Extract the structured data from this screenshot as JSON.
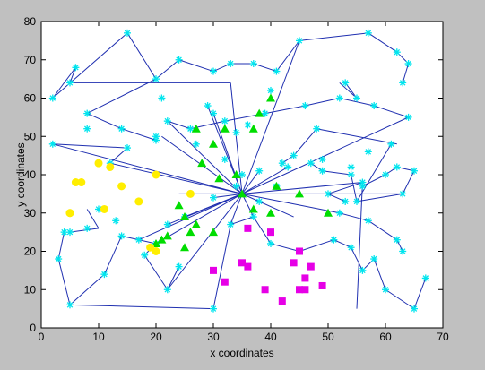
{
  "chart_data": {
    "type": "scatter",
    "xlabel": "x coordinates",
    "ylabel": "y coordinates",
    "xlim": [
      0,
      70
    ],
    "ylim": [
      0,
      80
    ],
    "xticks": [
      0,
      10,
      20,
      30,
      40,
      50,
      60,
      70
    ],
    "yticks": [
      0,
      10,
      20,
      30,
      40,
      50,
      60,
      70,
      80
    ],
    "grid": false,
    "hub": [
      35,
      35
    ],
    "colors": {
      "line": "#1f2fb0",
      "cyan": "#00e5ee",
      "green": "#00dd00",
      "yellow": "#ffee00",
      "magenta": "#e600e6",
      "figure_bg": "#c0c0c0",
      "axes_bg": "#ffffff"
    },
    "series": [
      {
        "marker": "asterisk",
        "color": "cyan",
        "x": [
          2,
          5,
          6,
          15,
          20,
          24,
          30,
          33,
          37,
          41,
          45,
          57,
          62,
          64,
          63,
          55,
          53,
          40,
          30,
          36,
          34,
          29,
          21,
          8,
          14,
          20,
          26,
          32,
          39,
          46,
          52,
          58,
          64,
          61,
          48,
          44,
          42,
          8,
          2,
          15,
          12,
          20,
          22,
          27,
          32,
          35,
          38,
          43,
          49,
          54,
          57,
          56,
          53,
          50,
          56,
          60,
          62,
          65,
          63,
          55,
          54,
          49,
          47,
          41,
          38,
          34,
          30,
          25,
          22,
          17,
          13,
          10,
          8,
          5,
          4,
          3,
          5,
          11,
          14,
          20,
          18,
          22,
          24,
          30,
          33,
          37,
          40,
          45,
          51,
          54,
          56,
          58,
          60,
          65,
          67,
          52,
          57,
          62,
          63
        ],
        "y": [
          60,
          64,
          68,
          77,
          65,
          70,
          67,
          69,
          69,
          67,
          75,
          77,
          72,
          69,
          64,
          60,
          64,
          62,
          56,
          53,
          51,
          58,
          60,
          56,
          52,
          49,
          52,
          54,
          56,
          58,
          60,
          58,
          55,
          48,
          52,
          45,
          43,
          52,
          48,
          47,
          43,
          50,
          54,
          48,
          44,
          40,
          41,
          42,
          44,
          42,
          46,
          38,
          33,
          35,
          37,
          40,
          42,
          41,
          35,
          33,
          40,
          41,
          43,
          37,
          33,
          37,
          34,
          29,
          27,
          23,
          28,
          31,
          26,
          25,
          25,
          18,
          6,
          14,
          24,
          22,
          19,
          10,
          16,
          5,
          27,
          29,
          22,
          20,
          23,
          21,
          15,
          18,
          10,
          5,
          13,
          30,
          28,
          23,
          20
        ]
      },
      {
        "marker": "triangle",
        "color": "green",
        "x": [
          27,
          30,
          32,
          37,
          38,
          40,
          34,
          31,
          28,
          35,
          41,
          45,
          50,
          40,
          37,
          30,
          25,
          20,
          21,
          22,
          25,
          24,
          26,
          27
        ],
        "y": [
          52,
          48,
          52,
          52,
          56,
          60,
          40,
          39,
          43,
          35,
          37,
          35,
          30,
          30,
          31,
          25,
          21,
          22,
          23,
          24,
          29,
          32,
          25,
          27
        ]
      },
      {
        "marker": "circle",
        "color": "yellow",
        "x": [
          5,
          6,
          7,
          10,
          12,
          14,
          17,
          20,
          26,
          11,
          5,
          19,
          20
        ],
        "y": [
          30,
          38,
          38,
          43,
          42,
          37,
          33,
          40,
          35,
          31,
          30,
          21,
          20
        ]
      },
      {
        "marker": "square",
        "color": "magenta",
        "x": [
          36,
          40,
          45,
          47,
          44,
          46,
          45,
          46,
          49,
          42,
          39,
          35,
          36,
          30,
          32
        ],
        "y": [
          26,
          25,
          20,
          16,
          17,
          13,
          10,
          10,
          11,
          7,
          10,
          17,
          16,
          15,
          12
        ]
      }
    ],
    "segments": [
      [
        2,
        60,
        15,
        77
      ],
      [
        15,
        77,
        20,
        65
      ],
      [
        20,
        65,
        24,
        70
      ],
      [
        24,
        70,
        30,
        67
      ],
      [
        30,
        67,
        33,
        69
      ],
      [
        33,
        69,
        37,
        69
      ],
      [
        37,
        69,
        41,
        67
      ],
      [
        41,
        67,
        45,
        75
      ],
      [
        45,
        75,
        57,
        77
      ],
      [
        57,
        77,
        62,
        72
      ],
      [
        62,
        72,
        64,
        69
      ],
      [
        64,
        69,
        63,
        64
      ],
      [
        5,
        64,
        33,
        64
      ],
      [
        33,
        64,
        35,
        35
      ],
      [
        6,
        68,
        5,
        64
      ],
      [
        2,
        60,
        6,
        68
      ],
      [
        8,
        56,
        14,
        52
      ],
      [
        14,
        52,
        20,
        49
      ],
      [
        8,
        56,
        20,
        65
      ],
      [
        2,
        48,
        15,
        47
      ],
      [
        15,
        47,
        12,
        43
      ],
      [
        22,
        54,
        26,
        52
      ],
      [
        26,
        52,
        32,
        54
      ],
      [
        32,
        54,
        39,
        56
      ],
      [
        39,
        56,
        46,
        58
      ],
      [
        46,
        58,
        52,
        60
      ],
      [
        52,
        60,
        58,
        58
      ],
      [
        58,
        58,
        64,
        55
      ],
      [
        52,
        64,
        55,
        60
      ],
      [
        55,
        60,
        53,
        64
      ],
      [
        62,
        48,
        48,
        52
      ],
      [
        48,
        52,
        44,
        45
      ],
      [
        44,
        45,
        42,
        43
      ],
      [
        61,
        48,
        55,
        33
      ],
      [
        55,
        33,
        54,
        40
      ],
      [
        54,
        40,
        49,
        41
      ],
      [
        49,
        41,
        47,
        43
      ],
      [
        56,
        38,
        50,
        35
      ],
      [
        50,
        35,
        53,
        33
      ],
      [
        56,
        37,
        60,
        40
      ],
      [
        60,
        40,
        62,
        42
      ],
      [
        62,
        42,
        65,
        41
      ],
      [
        65,
        41,
        63,
        35
      ],
      [
        63,
        35,
        55,
        33
      ],
      [
        4,
        25,
        3,
        18
      ],
      [
        3,
        18,
        5,
        6
      ],
      [
        5,
        6,
        11,
        14
      ],
      [
        11,
        14,
        14,
        24
      ],
      [
        14,
        24,
        20,
        22
      ],
      [
        20,
        22,
        18,
        19
      ],
      [
        18,
        19,
        22,
        10
      ],
      [
        22,
        10,
        24,
        16
      ],
      [
        5,
        6,
        30,
        5
      ],
      [
        30,
        5,
        33,
        27
      ],
      [
        33,
        27,
        37,
        29
      ],
      [
        37,
        29,
        40,
        22
      ],
      [
        40,
        22,
        45,
        20
      ],
      [
        45,
        20,
        51,
        23
      ],
      [
        51,
        23,
        54,
        21
      ],
      [
        54,
        21,
        56,
        15
      ],
      [
        56,
        15,
        58,
        18
      ],
      [
        58,
        18,
        60,
        10
      ],
      [
        60,
        10,
        65,
        5
      ],
      [
        65,
        5,
        67,
        13
      ],
      [
        52,
        30,
        57,
        28
      ],
      [
        57,
        28,
        62,
        23
      ],
      [
        62,
        23,
        63,
        20
      ],
      [
        55,
        5,
        56,
        38
      ],
      [
        8,
        31,
        10,
        26
      ],
      [
        10,
        26,
        5,
        25
      ],
      [
        35,
        35,
        2,
        48
      ],
      [
        35,
        35,
        56,
        38
      ],
      [
        35,
        35,
        64,
        55
      ],
      [
        35,
        35,
        12,
        43
      ],
      [
        35,
        35,
        22,
        54
      ],
      [
        35,
        35,
        29,
        58
      ],
      [
        35,
        35,
        45,
        75
      ],
      [
        35,
        35,
        38,
        41
      ],
      [
        35,
        35,
        43,
        42
      ],
      [
        35,
        35,
        52,
        30
      ],
      [
        35,
        35,
        30,
        56
      ],
      [
        35,
        35,
        17,
        23
      ],
      [
        35,
        35,
        25,
        29
      ],
      [
        35,
        35,
        22,
        27
      ],
      [
        35,
        35,
        20,
        22
      ],
      [
        35,
        35,
        21,
        50
      ],
      [
        35,
        35,
        24,
        35
      ],
      [
        35,
        35,
        44,
        29
      ],
      [
        35,
        35,
        33,
        27
      ],
      [
        35,
        35,
        37,
        29
      ],
      [
        35,
        35,
        30,
        34
      ],
      [
        35,
        35,
        22,
        10
      ],
      [
        35,
        35,
        63,
        35
      ]
    ]
  }
}
